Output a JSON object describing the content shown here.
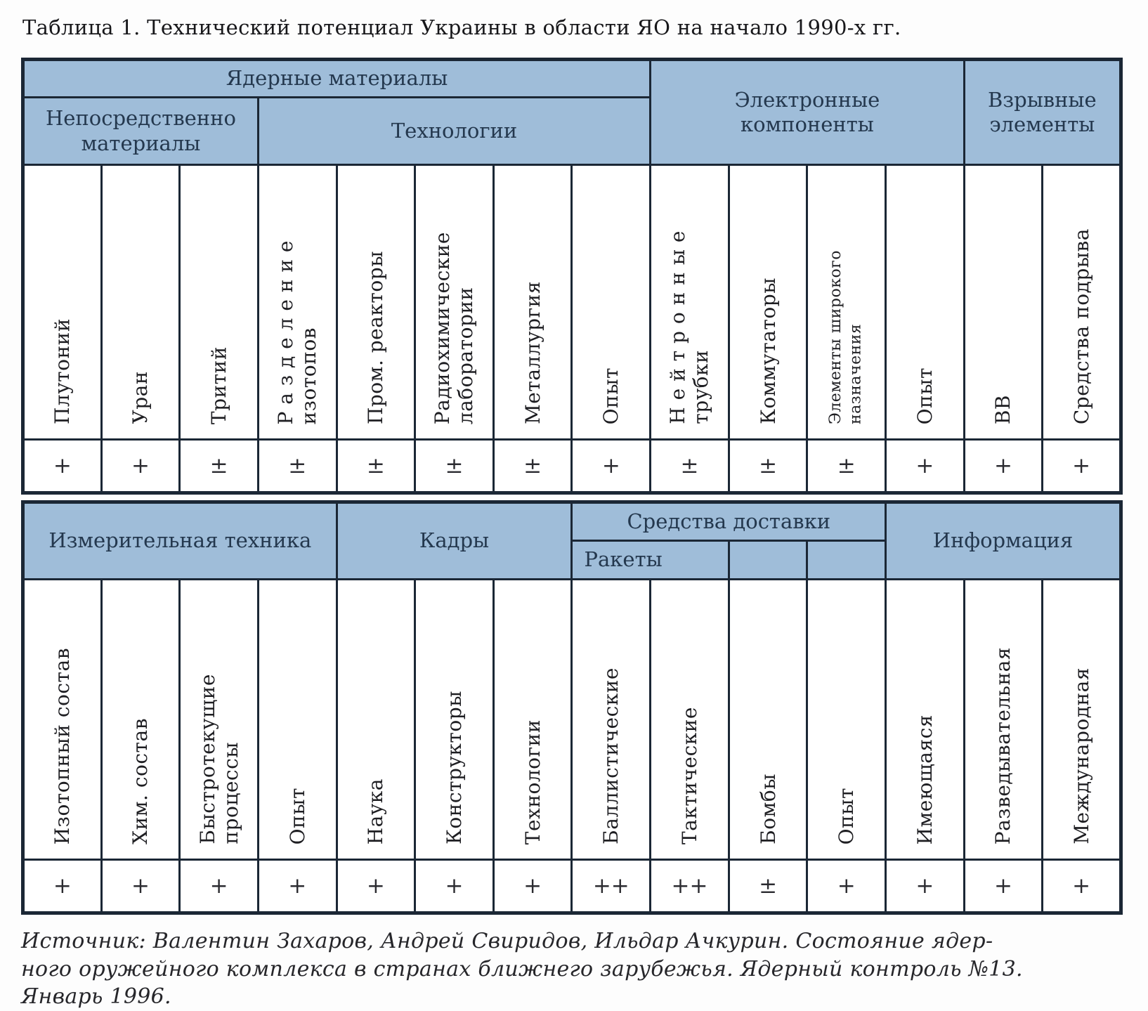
{
  "title": "Таблица 1. Технический потенциал Украины в области ЯО на начало 1990-х гг.",
  "colors": {
    "header_bg": "#9fbdd9",
    "border": "#1b2735",
    "header_text": "#24384e",
    "body_text": "#1e1e22"
  },
  "table1": {
    "groups": {
      "nuclear_materials": {
        "label": "Ядерные материалы",
        "display": "Ядерные материалы"
      },
      "direct_materials": {
        "label": "Непосредственно материалы",
        "display": "Непосредственно\nматериалы"
      },
      "technologies": {
        "label": "Технологии",
        "display": "Технологии"
      },
      "electronic_components": {
        "label": "Электронные компоненты",
        "display": "Электронные\nкомпоненты"
      },
      "explosive_elements": {
        "label": "Взрывные элементы",
        "display": "Взрывные\nэлементы"
      }
    },
    "columns": [
      {
        "id": "plutonium",
        "label": "Плутоний",
        "display": "Плутоний",
        "value": "+"
      },
      {
        "id": "uranium",
        "label": "Уран",
        "display": "Уран",
        "value": "+"
      },
      {
        "id": "tritium",
        "label": "Тритий",
        "display": "Тритий",
        "value": "±"
      },
      {
        "id": "isotope-separation",
        "label": "Разделение изотопов",
        "display": "Р а з д е л е н и е\nизотопов",
        "value": "±"
      },
      {
        "id": "industrial-reactors",
        "label": "Пром. реакторы",
        "display": "Пром. реакторы",
        "value": "±"
      },
      {
        "id": "radiochemical-labs",
        "label": "Радиохимические лаборатории",
        "display": "Радиохимические\nлаборатории",
        "value": "±"
      },
      {
        "id": "metallurgy",
        "label": "Металлургия",
        "display": "Металлургия",
        "value": "±"
      },
      {
        "id": "experience-materials",
        "label": "Опыт",
        "display": "Опыт",
        "value": "+"
      },
      {
        "id": "neutron-tubes",
        "label": "Нейтронные трубки",
        "display": "Н е й т р о н н ы е\nтрубки",
        "value": "±"
      },
      {
        "id": "commutators",
        "label": "Коммутаторы",
        "display": "Коммутаторы",
        "value": "±"
      },
      {
        "id": "general-purpose-elements",
        "label": "Элементы широкого назначения",
        "display": "Элементы широкого\nназначения",
        "value": "±"
      },
      {
        "id": "experience-electronics",
        "label": "Опыт",
        "display": "Опыт",
        "value": "+"
      },
      {
        "id": "explosives-vv",
        "label": "ВВ",
        "display": "ВВ",
        "value": "+"
      },
      {
        "id": "detonation-means",
        "label": "Средства подрыва",
        "display": "Средства подрыва",
        "value": "+"
      }
    ]
  },
  "table2": {
    "groups": {
      "measuring_equipment": {
        "label": "Измерительная техника",
        "display": "Измерительная техника"
      },
      "personnel": {
        "label": "Кадры",
        "display": "Кадры"
      },
      "delivery_means": {
        "label": "Средства доставки",
        "display": "Средства доставки"
      },
      "rockets": {
        "label": "Ракеты",
        "display": "Ракеты"
      },
      "information": {
        "label": "Информация",
        "display": "Информация"
      }
    },
    "columns": [
      {
        "id": "isotopic-composition",
        "label": "Изотопный состав",
        "display": "Изотопный состав",
        "value": "+"
      },
      {
        "id": "chemical-composition",
        "label": "Хим. состав",
        "display": "Хим. состав",
        "value": "+"
      },
      {
        "id": "fast-processes",
        "label": "Быстротекущие процессы",
        "display": "Быстротекущие\nпроцессы",
        "value": "+"
      },
      {
        "id": "experience-measuring",
        "label": "Опыт",
        "display": "Опыт",
        "value": "+"
      },
      {
        "id": "science",
        "label": "Наука",
        "display": "Наука",
        "value": "+"
      },
      {
        "id": "designers",
        "label": "Конструкторы",
        "display": "Конструкторы",
        "value": "+"
      },
      {
        "id": "technologies-personnel",
        "label": "Технологии",
        "display": "Технологии",
        "value": "+"
      },
      {
        "id": "ballistic-missiles",
        "label": "Баллистические",
        "display": "Баллистические",
        "value": "++"
      },
      {
        "id": "tactical-missiles",
        "label": "Тактические",
        "display": "Тактические",
        "value": "++"
      },
      {
        "id": "bombs",
        "label": "Бомбы",
        "display": "Бомбы",
        "value": "±"
      },
      {
        "id": "experience-delivery",
        "label": "Опыт",
        "display": "Опыт",
        "value": "+"
      },
      {
        "id": "information-available",
        "label": "Имеющаяся",
        "display": "Имеющаяся",
        "value": "+"
      },
      {
        "id": "information-intelligence",
        "label": "Разведывательная",
        "display": "Разведывательная",
        "value": "+"
      },
      {
        "id": "information-international",
        "label": "Международная",
        "display": "Международная",
        "value": "+"
      }
    ]
  },
  "source": {
    "text": "Источник: Валентин Захаров, Андрей Свиридов, Ильдар Ачкурин. Состояние ядер-\nного оружейного комплекса в странах ближнего зарубежья. Ядерный контроль №13.\nЯнварь 1996."
  }
}
